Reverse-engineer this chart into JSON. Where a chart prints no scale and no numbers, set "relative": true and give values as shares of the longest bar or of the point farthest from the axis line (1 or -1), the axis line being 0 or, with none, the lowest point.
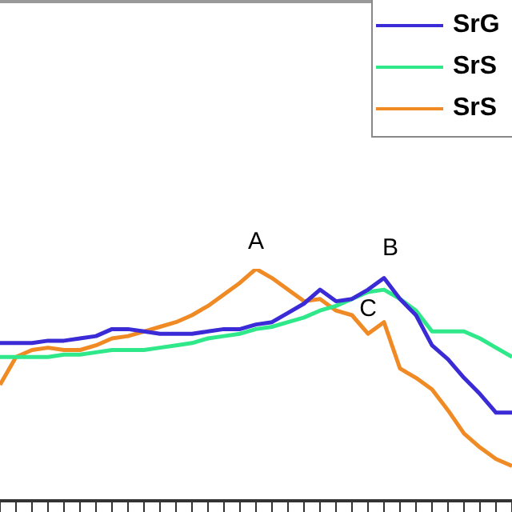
{
  "chart_data": {
    "type": "line",
    "relative": true,
    "legend": "top right",
    "marker": "none",
    "grid": false,
    "tick_labels": false,
    "categories": [
      null,
      null,
      null,
      null,
      null,
      null,
      null,
      null,
      null,
      null,
      null,
      null,
      null,
      null,
      null,
      null,
      null,
      null,
      null,
      null,
      null,
      null,
      null,
      null,
      null,
      null,
      null,
      null,
      null,
      null,
      null,
      null,
      null
    ],
    "series": [
      {
        "name": "SrG",
        "color": "#3a2bd6",
        "values": [
          0.68,
          0.68,
          0.68,
          0.69,
          0.69,
          0.7,
          0.71,
          0.74,
          0.74,
          0.73,
          0.72,
          0.72,
          0.72,
          0.73,
          0.74,
          0.74,
          0.76,
          0.77,
          0.81,
          0.85,
          0.91,
          0.86,
          0.87,
          0.91,
          0.96,
          0.87,
          0.8,
          0.67,
          0.61,
          0.53,
          0.46,
          0.38,
          0.38
        ]
      },
      {
        "name": "SrS",
        "color": "#2ee88a",
        "values": [
          0.62,
          0.62,
          0.62,
          0.62,
          0.63,
          0.63,
          0.64,
          0.65,
          0.65,
          0.65,
          0.66,
          0.67,
          0.68,
          0.7,
          0.71,
          0.72,
          0.74,
          0.75,
          0.77,
          0.79,
          0.82,
          0.84,
          0.87,
          0.9,
          0.91,
          0.87,
          0.82,
          0.73,
          0.73,
          0.73,
          0.7,
          0.66,
          0.62
        ]
      },
      {
        "name": "SrS",
        "color": "#f08a24",
        "values": [
          0.5,
          0.62,
          0.65,
          0.66,
          0.65,
          0.65,
          0.67,
          0.7,
          0.71,
          0.73,
          0.75,
          0.77,
          0.8,
          0.84,
          0.89,
          0.94,
          1,
          0.96,
          0.91,
          0.86,
          0.87,
          0.82,
          0.8,
          0.72,
          0.77,
          0.57,
          0.53,
          0.48,
          0.39,
          0.29,
          0.23,
          0.18,
          0.15
        ]
      }
    ],
    "annotations": [
      "A",
      "B",
      "C"
    ]
  }
}
